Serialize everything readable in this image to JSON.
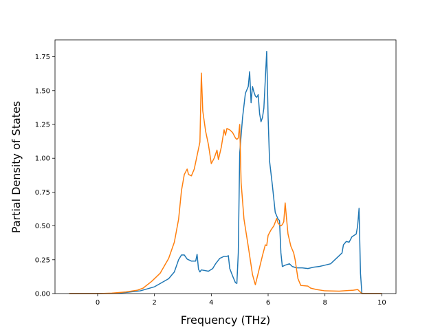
{
  "chart_data": {
    "type": "line",
    "title": "",
    "xlabel": "Frequency (THz)",
    "ylabel": "Partial Density of States",
    "xlim": [
      -1.5,
      10.5
    ],
    "ylim": [
      0,
      1.875
    ],
    "x_ticks": [
      0,
      2,
      4,
      6,
      8,
      10
    ],
    "x_tick_labels": [
      "0",
      "2",
      "4",
      "6",
      "8",
      "10"
    ],
    "y_ticks": [
      0,
      0.25,
      0.5,
      0.75,
      1.0,
      1.25,
      1.5,
      1.75
    ],
    "y_tick_labels": [
      "0.00",
      "0.25",
      "0.50",
      "0.75",
      "1.00",
      "1.25",
      "1.50",
      "1.75"
    ],
    "grid": false,
    "legend": "none",
    "series": [
      {
        "color": "#1f77b4",
        "points": [
          [
            -1.0,
            0
          ],
          [
            0.0,
            0
          ],
          [
            0.5,
            0.002
          ],
          [
            1.0,
            0.008
          ],
          [
            1.5,
            0.02
          ],
          [
            2.0,
            0.05
          ],
          [
            2.5,
            0.11
          ],
          [
            2.7,
            0.16
          ],
          [
            2.85,
            0.25
          ],
          [
            2.95,
            0.285
          ],
          [
            3.05,
            0.285
          ],
          [
            3.15,
            0.255
          ],
          [
            3.3,
            0.24
          ],
          [
            3.45,
            0.24
          ],
          [
            3.5,
            0.29
          ],
          [
            3.55,
            0.18
          ],
          [
            3.6,
            0.16
          ],
          [
            3.65,
            0.175
          ],
          [
            3.9,
            0.165
          ],
          [
            4.05,
            0.185
          ],
          [
            4.15,
            0.22
          ],
          [
            4.3,
            0.26
          ],
          [
            4.45,
            0.275
          ],
          [
            4.55,
            0.275
          ],
          [
            4.6,
            0.28
          ],
          [
            4.65,
            0.185
          ],
          [
            4.75,
            0.13
          ],
          [
            4.85,
            0.08
          ],
          [
            4.9,
            0.075
          ],
          [
            4.95,
            0.3
          ],
          [
            5.0,
            1.04
          ],
          [
            5.1,
            1.3
          ],
          [
            5.2,
            1.48
          ],
          [
            5.3,
            1.53
          ],
          [
            5.35,
            1.64
          ],
          [
            5.4,
            1.41
          ],
          [
            5.45,
            1.53
          ],
          [
            5.5,
            1.49
          ],
          [
            5.55,
            1.46
          ],
          [
            5.6,
            1.45
          ],
          [
            5.65,
            1.47
          ],
          [
            5.7,
            1.33
          ],
          [
            5.75,
            1.27
          ],
          [
            5.8,
            1.3
          ],
          [
            5.85,
            1.37
          ],
          [
            5.95,
            1.79
          ],
          [
            6.0,
            1.3
          ],
          [
            6.05,
            0.98
          ],
          [
            6.15,
            0.8
          ],
          [
            6.25,
            0.6
          ],
          [
            6.35,
            0.55
          ],
          [
            6.4,
            0.54
          ],
          [
            6.45,
            0.3
          ],
          [
            6.5,
            0.2
          ],
          [
            6.6,
            0.21
          ],
          [
            6.75,
            0.22
          ],
          [
            6.85,
            0.2
          ],
          [
            7.0,
            0.19
          ],
          [
            7.2,
            0.19
          ],
          [
            7.4,
            0.185
          ],
          [
            7.6,
            0.195
          ],
          [
            7.8,
            0.2
          ],
          [
            8.0,
            0.21
          ],
          [
            8.2,
            0.22
          ],
          [
            8.35,
            0.25
          ],
          [
            8.5,
            0.28
          ],
          [
            8.6,
            0.3
          ],
          [
            8.65,
            0.36
          ],
          [
            8.75,
            0.385
          ],
          [
            8.85,
            0.38
          ],
          [
            8.95,
            0.42
          ],
          [
            9.1,
            0.44
          ],
          [
            9.15,
            0.5
          ],
          [
            9.2,
            0.63
          ],
          [
            9.25,
            0.15
          ],
          [
            9.3,
            0
          ],
          [
            10.0,
            0
          ]
        ]
      },
      {
        "color": "#ff7f0e",
        "points": [
          [
            -1.0,
            0
          ],
          [
            0.0,
            0
          ],
          [
            0.5,
            0.003
          ],
          [
            1.0,
            0.012
          ],
          [
            1.4,
            0.025
          ],
          [
            1.6,
            0.04
          ],
          [
            1.9,
            0.09
          ],
          [
            2.2,
            0.15
          ],
          [
            2.5,
            0.26
          ],
          [
            2.7,
            0.38
          ],
          [
            2.85,
            0.55
          ],
          [
            2.95,
            0.76
          ],
          [
            3.05,
            0.88
          ],
          [
            3.15,
            0.92
          ],
          [
            3.2,
            0.88
          ],
          [
            3.3,
            0.87
          ],
          [
            3.4,
            0.92
          ],
          [
            3.5,
            1.02
          ],
          [
            3.6,
            1.12
          ],
          [
            3.65,
            1.63
          ],
          [
            3.7,
            1.35
          ],
          [
            3.8,
            1.2
          ],
          [
            3.9,
            1.1
          ],
          [
            4.0,
            0.96
          ],
          [
            4.1,
            1.0
          ],
          [
            4.2,
            1.06
          ],
          [
            4.25,
            0.99
          ],
          [
            4.35,
            1.08
          ],
          [
            4.45,
            1.21
          ],
          [
            4.5,
            1.17
          ],
          [
            4.55,
            1.22
          ],
          [
            4.65,
            1.21
          ],
          [
            4.75,
            1.19
          ],
          [
            4.85,
            1.15
          ],
          [
            4.9,
            1.14
          ],
          [
            4.95,
            1.15
          ],
          [
            5.0,
            1.25
          ],
          [
            5.05,
            0.82
          ],
          [
            5.15,
            0.55
          ],
          [
            5.3,
            0.35
          ],
          [
            5.45,
            0.14
          ],
          [
            5.55,
            0.065
          ],
          [
            5.65,
            0.15
          ],
          [
            5.8,
            0.28
          ],
          [
            5.9,
            0.36
          ],
          [
            5.95,
            0.355
          ],
          [
            6.0,
            0.43
          ],
          [
            6.1,
            0.47
          ],
          [
            6.2,
            0.5
          ],
          [
            6.3,
            0.555
          ],
          [
            6.35,
            0.52
          ],
          [
            6.45,
            0.5
          ],
          [
            6.5,
            0.51
          ],
          [
            6.55,
            0.53
          ],
          [
            6.6,
            0.67
          ],
          [
            6.65,
            0.55
          ],
          [
            6.7,
            0.44
          ],
          [
            6.8,
            0.35
          ],
          [
            6.9,
            0.3
          ],
          [
            6.95,
            0.25
          ],
          [
            7.05,
            0.11
          ],
          [
            7.15,
            0.06
          ],
          [
            7.4,
            0.055
          ],
          [
            7.5,
            0.04
          ],
          [
            7.7,
            0.03
          ],
          [
            8.0,
            0.02
          ],
          [
            8.5,
            0.018
          ],
          [
            9.0,
            0.025
          ],
          [
            9.15,
            0.03
          ],
          [
            9.2,
            0.02
          ],
          [
            9.3,
            0
          ],
          [
            10.0,
            0
          ]
        ]
      }
    ]
  }
}
